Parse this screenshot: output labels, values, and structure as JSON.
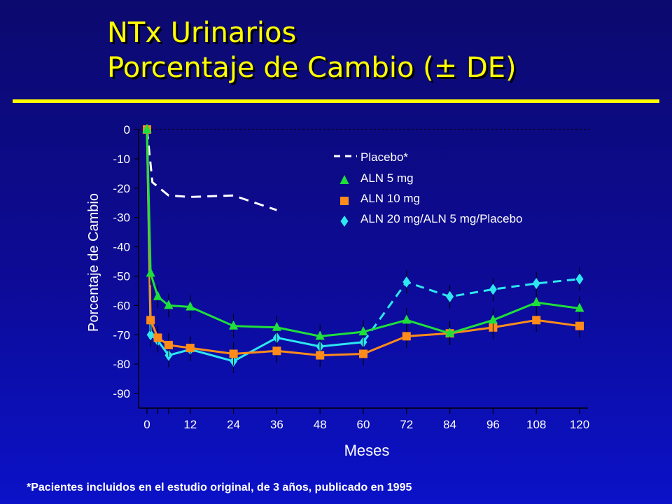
{
  "title": {
    "line1": "NTx Urinarios",
    "line2": "Porcentaje de Cambio (± DE)"
  },
  "footnote": "*Pacientes incluidos en el estudio original, de 3 años, publicado en 1995",
  "colors": {
    "title": "#ffff00",
    "text": "#ffffff",
    "placebo": "#ffffff",
    "aln5": "#1fe03a",
    "aln10": "#ff8c1a",
    "aln20": "#2ee6f0"
  },
  "chart_data": {
    "type": "line",
    "xlabel": "Meses",
    "ylabel": "Porcentaje de Cambio",
    "xlim": [
      0,
      120
    ],
    "ylim": [
      -95,
      0
    ],
    "x_ticks": [
      0,
      12,
      24,
      36,
      48,
      60,
      72,
      84,
      96,
      108,
      120
    ],
    "y_ticks": [
      0,
      -10,
      -20,
      -30,
      -40,
      -50,
      -60,
      -70,
      -80,
      -90
    ],
    "zero_line": "dashed",
    "legend": "top-right",
    "series": [
      {
        "name": "Placebo*",
        "marker": "none",
        "line": "dashed",
        "color": "#ffffff",
        "points": [
          [
            0,
            0
          ],
          [
            1.5,
            -18
          ],
          [
            6,
            -22.5
          ],
          [
            12,
            -23
          ],
          [
            24,
            -22.5
          ],
          [
            36,
            -27.5
          ]
        ]
      },
      {
        "name": "ALN 5 mg",
        "marker": "triangle",
        "line": "solid",
        "color": "#1fe03a",
        "points": [
          [
            0,
            0
          ],
          [
            1,
            -49
          ],
          [
            3,
            -57
          ],
          [
            6,
            -60
          ],
          [
            12,
            -60.5
          ],
          [
            24,
            -67
          ],
          [
            36,
            -67.5
          ],
          [
            48,
            -70.5
          ],
          [
            60,
            -69
          ],
          [
            72,
            -65
          ],
          [
            84,
            -69.5
          ],
          [
            96,
            -65
          ],
          [
            108,
            -59
          ],
          [
            120,
            -61
          ]
        ]
      },
      {
        "name": "ALN 10 mg",
        "marker": "square",
        "line": "solid",
        "color": "#ff8c1a",
        "points": [
          [
            0,
            0
          ],
          [
            1,
            -65
          ],
          [
            3,
            -71
          ],
          [
            6,
            -73.5
          ],
          [
            12,
            -74.5
          ],
          [
            24,
            -76.5
          ],
          [
            36,
            -75.5
          ],
          [
            48,
            -77
          ],
          [
            60,
            -76.5
          ],
          [
            72,
            -70.5
          ],
          [
            84,
            -69.5
          ],
          [
            96,
            -67.5
          ],
          [
            108,
            -65
          ],
          [
            120,
            -67
          ]
        ]
      },
      {
        "name": "ALN 20 mg/ALN 5 mg/Placebo",
        "marker": "diamond",
        "line": "solid then dashed after 60",
        "color": "#2ee6f0",
        "points": [
          [
            0,
            0
          ],
          [
            1,
            -70
          ],
          [
            3,
            -72
          ],
          [
            6,
            -77
          ],
          [
            12,
            -75
          ],
          [
            24,
            -79
          ],
          [
            36,
            -71
          ],
          [
            48,
            -74
          ],
          [
            60,
            -72.5
          ],
          [
            72,
            -52
          ],
          [
            84,
            -57
          ],
          [
            96,
            -54.5
          ],
          [
            108,
            -52.5
          ],
          [
            120,
            -51
          ]
        ]
      }
    ]
  }
}
